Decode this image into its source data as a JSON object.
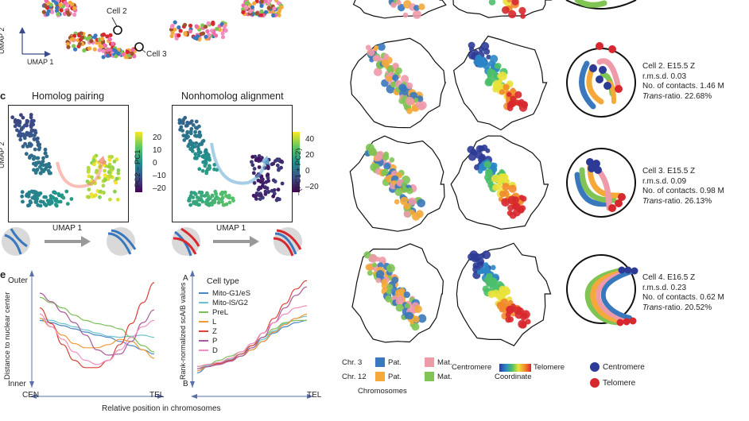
{
  "panel_b": {
    "cell2_label": "Cell 2",
    "cell3_label": "Cell 3",
    "axis_y": "UMAP 2",
    "axis_x": "UMAP 1"
  },
  "panel_c": {
    "letter": "c",
    "left_title": "Homolog pairing",
    "right_title": "Nonhomolog alignment",
    "left_colorbar_label": "PC2 – PC1",
    "left_colorbar_ticks": [
      "20",
      "10",
      "0",
      "–10",
      "–20"
    ],
    "right_colorbar_label": "–(PC1 + PC2)",
    "right_colorbar_ticks": [
      "40",
      "20",
      "0",
      "–20"
    ],
    "axis_y": "UMAP 2",
    "axis_x_left": "UMAP 1",
    "axis_x_right": "UMAP 1"
  },
  "panel_e": {
    "letter": "e",
    "left_ylabel": "Distance to nuclear center",
    "left_ytop": "Outer",
    "left_ybottom": "Inner",
    "right_ylabel": "Rank-normalized scA/B values",
    "right_ytop": "A",
    "right_ybottom": "B",
    "x_left_start": "CEN",
    "x_left_end": "TEL",
    "x_right_end": "TEL",
    "xlabel": "Relative position in chromosomes",
    "legend_title": "Cell type",
    "legend": [
      {
        "name": "Mito-G1/eS",
        "color": "#4a86c5"
      },
      {
        "name": "Mito-lS/G2",
        "color": "#6cc3d3"
      },
      {
        "name": "PreL",
        "color": "#7cbf5a"
      },
      {
        "name": "L",
        "color": "#f29a3a"
      },
      {
        "name": "Z",
        "color": "#d9413a"
      },
      {
        "name": "P",
        "color": "#a85a9c"
      },
      {
        "name": "D",
        "color": "#f08fc0"
      }
    ]
  },
  "chart_data": [
    {
      "type": "line",
      "title": "",
      "xlabel": "Relative position in chromosomes",
      "ylabel": "Distance to nuclear center",
      "x_tick_labels": [
        "CEN",
        "TEL"
      ],
      "y_tick_labels": [
        "Inner",
        "Outer"
      ],
      "x": [
        0,
        0.1,
        0.2,
        0.3,
        0.4,
        0.5,
        0.6,
        0.7,
        0.8,
        0.9,
        1.0
      ],
      "ylim": [
        0,
        1
      ],
      "series": [
        {
          "name": "Mito-G1/eS",
          "values": [
            0.58,
            0.56,
            0.53,
            0.5,
            0.47,
            0.44,
            0.42,
            0.38,
            0.34,
            0.3,
            0.26
          ]
        },
        {
          "name": "Mito-lS/G2",
          "values": [
            0.6,
            0.58,
            0.55,
            0.52,
            0.49,
            0.46,
            0.43,
            0.42,
            0.43,
            0.44,
            0.42
          ]
        },
        {
          "name": "PreL",
          "values": [
            0.8,
            0.75,
            0.7,
            0.63,
            0.58,
            0.55,
            0.53,
            0.5,
            0.42,
            0.34,
            0.28
          ]
        },
        {
          "name": "L",
          "values": [
            0.6,
            0.52,
            0.44,
            0.36,
            0.32,
            0.32,
            0.35,
            0.4,
            0.38,
            0.3,
            0.22
          ]
        },
        {
          "name": "Z",
          "values": [
            0.7,
            0.55,
            0.35,
            0.2,
            0.13,
            0.13,
            0.2,
            0.35,
            0.55,
            0.75,
            0.94
          ]
        },
        {
          "name": "P",
          "values": [
            0.84,
            0.76,
            0.66,
            0.56,
            0.44,
            0.3,
            0.25,
            0.26,
            0.38,
            0.56,
            0.68
          ]
        },
        {
          "name": "D",
          "values": [
            0.64,
            0.52,
            0.4,
            0.28,
            0.2,
            0.16,
            0.2,
            0.3,
            0.42,
            0.52,
            0.58
          ]
        }
      ]
    },
    {
      "type": "line",
      "title": "",
      "xlabel": "Relative position in chromosomes",
      "ylabel": "Rank-normalized scA/B values",
      "x_tick_labels": [
        "",
        "TEL"
      ],
      "y_tick_labels": [
        "B",
        "A"
      ],
      "x": [
        0,
        0.1,
        0.2,
        0.3,
        0.4,
        0.5,
        0.6,
        0.7,
        0.8,
        0.9,
        1.0
      ],
      "ylim": [
        0,
        1
      ],
      "series": [
        {
          "name": "Mito-G1/eS",
          "values": [
            0.08,
            0.14,
            0.18,
            0.2,
            0.24,
            0.3,
            0.38,
            0.46,
            0.52,
            0.56,
            0.58
          ]
        },
        {
          "name": "Mito-lS/G2",
          "values": [
            0.1,
            0.15,
            0.18,
            0.21,
            0.26,
            0.32,
            0.4,
            0.48,
            0.55,
            0.6,
            0.62
          ]
        },
        {
          "name": "PreL",
          "values": [
            0.12,
            0.16,
            0.2,
            0.24,
            0.28,
            0.34,
            0.42,
            0.5,
            0.56,
            0.58,
            0.58
          ]
        },
        {
          "name": "L",
          "values": [
            0.1,
            0.14,
            0.17,
            0.2,
            0.24,
            0.3,
            0.38,
            0.47,
            0.54,
            0.6,
            0.64
          ]
        },
        {
          "name": "Z",
          "values": [
            0.14,
            0.16,
            0.17,
            0.2,
            0.26,
            0.34,
            0.46,
            0.6,
            0.74,
            0.88,
            0.96
          ]
        },
        {
          "name": "P",
          "values": [
            0.12,
            0.14,
            0.16,
            0.19,
            0.24,
            0.32,
            0.42,
            0.56,
            0.7,
            0.82,
            0.9
          ]
        },
        {
          "name": "D",
          "values": [
            0.14,
            0.16,
            0.18,
            0.22,
            0.28,
            0.36,
            0.46,
            0.56,
            0.64,
            0.7,
            0.72
          ]
        }
      ]
    }
  ],
  "cells": [
    {
      "title": "Cell 2. E15.5 Z",
      "rmsd": "r.m.s.d. 0.03",
      "contacts": "No. of contacts. 1.46 M",
      "trans_label": "Trans",
      "trans_value": "-ratio. 22.68%"
    },
    {
      "title": "Cell 3. E15.5 Z",
      "rmsd": "r.m.s.d. 0.09",
      "contacts": "No. of contacts. 0.98 M",
      "trans_label": "Trans",
      "trans_value": "-ratio. 26.13%"
    },
    {
      "title": "Cell 4. E16.5 Z",
      "rmsd": "r.m.s.d. 0.23",
      "contacts": "No. of contacts. 0.62 M",
      "trans_label": "Trans",
      "trans_value": "-ratio. 20.52%"
    }
  ],
  "chrom_legend": {
    "chr3": "Chr. 3",
    "chr12": "Chr. 12",
    "pat": "Pat.",
    "mat": "Mat.",
    "title": "Chromosomes",
    "colors": {
      "chr3_pat": "#3a78bd",
      "chr3_mat": "#ee9aa8",
      "chr12_pat": "#f4a93a",
      "chr12_mat": "#80c454"
    }
  },
  "coord_legend": {
    "start": "Centromere",
    "end": "Telomere",
    "title": "Coordinate"
  },
  "marker_legend": {
    "centromere": "Centromere",
    "telomere": "Telomere",
    "centromere_color": "#2d3b96",
    "telomere_color": "#d7282f"
  }
}
